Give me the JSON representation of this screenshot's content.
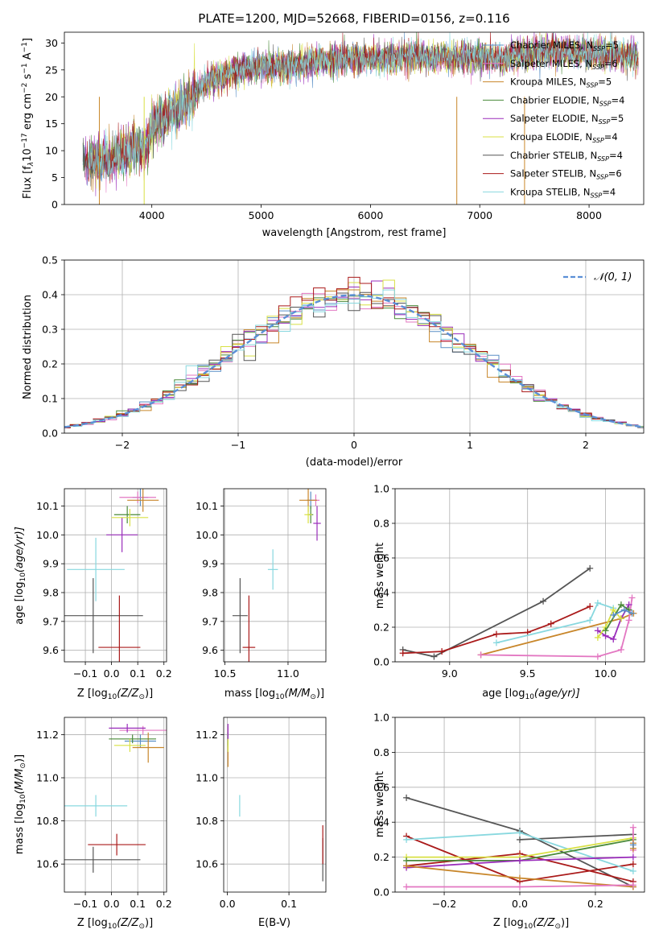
{
  "colors": {
    "chab_miles": "#5a8fc6",
    "salp_miles": "#e377c2",
    "kroupa_miles": "#c8862a",
    "chab_elodie": "#4a8a3a",
    "salp_elodie": "#9a2dbb",
    "kroupa_elodie": "#d8e043",
    "chab_stelib": "#555555",
    "salp_stelib": "#aa1a1a",
    "kroupa_stelib": "#88d8df"
  },
  "chart_data": [
    {
      "id": "spectrum",
      "type": "line",
      "title": "PLATE=1200, MJD=52668, FIBERID=0156, z=0.116",
      "xlabel": "wavelength [Angstrom, rest frame]",
      "ylabel_parts": [
        "Flux [f",
        "λ",
        "10",
        "−17",
        " erg cm",
        "−2",
        " s",
        "−1",
        " A",
        "−1",
        "]"
      ],
      "xlim": [
        3200,
        8500
      ],
      "ylim": [
        0,
        32
      ],
      "xticks": [
        "4000",
        "5000",
        "6000",
        "7000",
        "8000"
      ],
      "yticks": [
        "0",
        "5",
        "10",
        "15",
        "20",
        "25",
        "30"
      ],
      "legend_position": "upper-right",
      "continuum": {
        "x": [
          3400,
          3600,
          3800,
          3950,
          4000,
          4200,
          4300,
          4500,
          4800,
          5000,
          5200,
          5500,
          5800,
          6000,
          6300,
          6600,
          6800,
          7000,
          7200,
          7400,
          7600,
          7800,
          8000,
          8200,
          8450
        ],
        "y": [
          8,
          8.5,
          10,
          10.5,
          15,
          17,
          18.5,
          23,
          25,
          25.5,
          25.5,
          26.5,
          27,
          27,
          27.5,
          27.2,
          27.5,
          27.5,
          27,
          28,
          28.5,
          28.5,
          28,
          28,
          27.5
        ]
      },
      "legend": [
        {
          "label": "Chabrier MILES, N",
          "n": "5",
          "color_key": "chab_miles"
        },
        {
          "label": "Salpeter MILES, N",
          "n": "6",
          "color_key": "salp_miles"
        },
        {
          "label": "Kroupa MILES, N",
          "n": "5",
          "color_key": "kroupa_miles"
        },
        {
          "label": "Chabrier ELODIE, N",
          "n": "4",
          "color_key": "chab_elodie"
        },
        {
          "label": "Salpeter ELODIE, N",
          "n": "5",
          "color_key": "salp_elodie"
        },
        {
          "label": "Kroupa ELODIE, N",
          "n": "4",
          "color_key": "kroupa_elodie"
        },
        {
          "label": "Chabrier STELIB, N",
          "n": "4",
          "color_key": "chab_stelib"
        },
        {
          "label": "Salpeter STELIB, N",
          "n": "6",
          "color_key": "salp_stelib"
        },
        {
          "label": "Kroupa STELIB, N",
          "n": "4",
          "color_key": "kroupa_stelib"
        }
      ],
      "legend_sub": "SSP"
    },
    {
      "id": "residuals",
      "type": "line",
      "xlabel": "(data-model)/error",
      "ylabel": "Normed distribution",
      "xlim": [
        -2.5,
        2.5
      ],
      "ylim": [
        0,
        0.5
      ],
      "xticks": [
        "−2",
        "−1",
        "0",
        "1",
        "2"
      ],
      "yticks": [
        "0.0",
        "0.1",
        "0.2",
        "0.3",
        "0.4",
        "0.5"
      ],
      "grid": true,
      "legend": [
        {
          "label": "𝒩(0, 1)",
          "color": "#5a8fd6"
        }
      ],
      "legend_position": "upper-right",
      "bin_width": 0.1
    },
    {
      "id": "age_vs_Z",
      "type": "scatter",
      "xlabel_parts": [
        "Z [log",
        "10",
        "(Z/Z",
        "⊙",
        ")]"
      ],
      "ylabel_parts": [
        "age  [log",
        "10",
        "(age/yr)]"
      ],
      "xlim": [
        -0.18,
        0.21
      ],
      "ylim": [
        9.56,
        10.16
      ],
      "xticks": [
        "−0.1",
        "0.0",
        "0.1",
        "0.2"
      ],
      "xtick_values": [
        -0.1,
        0,
        0.1,
        0.2
      ],
      "yticks": [
        "9.6",
        "9.7",
        "9.8",
        "9.9",
        "10.0",
        "10.1"
      ],
      "ytick_values": [
        9.6,
        9.7,
        9.8,
        9.9,
        10.0,
        10.1
      ],
      "points": [
        {
          "x": 0.11,
          "y": 10.13,
          "xerr": 0.03,
          "yerr": 0.03,
          "color_key": "chab_miles"
        },
        {
          "x": 0.1,
          "y": 10.13,
          "xerr": 0.07,
          "yerr": 0.02,
          "color_key": "salp_miles"
        },
        {
          "x": 0.12,
          "y": 10.12,
          "xerr": 0.06,
          "yerr": 0.04,
          "color_key": "kroupa_miles"
        },
        {
          "x": 0.06,
          "y": 10.07,
          "xerr": 0.05,
          "yerr": 0.03,
          "color_key": "chab_elodie"
        },
        {
          "x": 0.04,
          "y": 10.0,
          "xerr": 0.06,
          "yerr": 0.06,
          "color_key": "salp_elodie"
        },
        {
          "x": 0.07,
          "y": 10.06,
          "xerr": 0.07,
          "yerr": 0.03,
          "color_key": "kroupa_elodie"
        },
        {
          "x": -0.07,
          "y": 9.72,
          "xerr": 0.19,
          "yerr": 0.13,
          "color_key": "chab_stelib"
        },
        {
          "x": 0.03,
          "y": 9.61,
          "xerr": 0.08,
          "yerr": 0.18,
          "color_key": "salp_stelib"
        },
        {
          "x": -0.06,
          "y": 9.88,
          "xerr": 0.11,
          "yerr": 0.11,
          "color_key": "kroupa_stelib"
        }
      ]
    },
    {
      "id": "age_vs_mass",
      "type": "scatter",
      "xlabel_parts": [
        "mass [log",
        "10",
        "(M/M",
        "⊙",
        ")]"
      ],
      "xlim": [
        10.49,
        11.3
      ],
      "ylim": [
        9.56,
        10.16
      ],
      "xticks": [
        "10.5",
        "11.0"
      ],
      "xtick_values": [
        10.5,
        11.0
      ],
      "yticks": [
        "9.6",
        "9.7",
        "9.8",
        "9.9",
        "10.0",
        "10.1"
      ],
      "ytick_values": [
        9.6,
        9.7,
        9.8,
        9.9,
        10.0,
        10.1
      ],
      "points": [
        {
          "x": 11.18,
          "y": 10.12,
          "xerr": 0.03,
          "yerr": 0.03,
          "color_key": "chab_miles"
        },
        {
          "x": 11.22,
          "y": 10.12,
          "xerr": 0.03,
          "yerr": 0.02,
          "color_key": "salp_miles"
        },
        {
          "x": 11.16,
          "y": 10.12,
          "xerr": 0.07,
          "yerr": 0.04,
          "color_key": "kroupa_miles"
        },
        {
          "x": 11.18,
          "y": 10.07,
          "xerr": 0.02,
          "yerr": 0.03,
          "color_key": "chab_elodie"
        },
        {
          "x": 11.23,
          "y": 10.04,
          "xerr": 0.03,
          "yerr": 0.06,
          "color_key": "salp_elodie"
        },
        {
          "x": 11.16,
          "y": 10.07,
          "xerr": 0.03,
          "yerr": 0.03,
          "color_key": "kroupa_elodie"
        },
        {
          "x": 10.62,
          "y": 9.72,
          "xerr": 0.06,
          "yerr": 0.13,
          "color_key": "chab_stelib"
        },
        {
          "x": 10.69,
          "y": 9.61,
          "xerr": 0.05,
          "yerr": 0.18,
          "color_key": "salp_stelib"
        },
        {
          "x": 10.88,
          "y": 9.88,
          "xerr": 0.04,
          "yerr": 0.07,
          "color_key": "kroupa_stelib"
        }
      ]
    },
    {
      "id": "mass_vs_Z",
      "type": "scatter",
      "xlabel_parts": [
        "Z [log",
        "10",
        "(Z/Z",
        "⊙",
        ")]"
      ],
      "ylabel_parts": [
        "mass [log",
        "10",
        "(M/M",
        "⊙",
        ")]"
      ],
      "xlim": [
        -0.18,
        0.21
      ],
      "ylim": [
        10.47,
        11.28
      ],
      "xticks": [
        "−0.1",
        "0.0",
        "0.1",
        "0.2"
      ],
      "xtick_values": [
        -0.1,
        0,
        0.1,
        0.2
      ],
      "yticks": [
        "10.6",
        "10.8",
        "11.0",
        "11.2"
      ],
      "ytick_values": [
        10.6,
        10.8,
        11.0,
        11.2
      ],
      "points": [
        {
          "x": 0.11,
          "y": 11.17,
          "xerr": 0.06,
          "yerr": 0.03,
          "color_key": "chab_miles"
        },
        {
          "x": 0.12,
          "y": 11.22,
          "xerr": 0.09,
          "yerr": 0.02,
          "color_key": "salp_miles"
        },
        {
          "x": 0.14,
          "y": 11.14,
          "xerr": 0.06,
          "yerr": 0.07,
          "color_key": "kroupa_miles"
        },
        {
          "x": 0.08,
          "y": 11.18,
          "xerr": 0.09,
          "yerr": 0.02,
          "color_key": "chab_elodie"
        },
        {
          "x": 0.06,
          "y": 11.23,
          "xerr": 0.07,
          "yerr": 0.02,
          "color_key": "salp_elodie"
        },
        {
          "x": 0.07,
          "y": 11.15,
          "xerr": 0.06,
          "yerr": 0.03,
          "color_key": "kroupa_elodie"
        },
        {
          "x": -0.07,
          "y": 10.62,
          "xerr": 0.18,
          "yerr": 0.06,
          "color_key": "chab_stelib"
        },
        {
          "x": 0.02,
          "y": 10.69,
          "xerr": 0.11,
          "yerr": 0.05,
          "color_key": "salp_stelib"
        },
        {
          "x": -0.06,
          "y": 10.87,
          "xerr": 0.12,
          "yerr": 0.05,
          "color_key": "kroupa_stelib"
        }
      ]
    },
    {
      "id": "mass_vs_ebv",
      "type": "scatter",
      "xlabel": "E(B-V)",
      "xlim": [
        -0.006,
        0.16
      ],
      "ylim": [
        10.47,
        11.28
      ],
      "xticks": [
        "0.0",
        "0.1"
      ],
      "xtick_values": [
        0,
        0.1
      ],
      "yticks": [
        "10.6",
        "10.8",
        "11.0",
        "11.2"
      ],
      "ytick_values": [
        10.6,
        10.8,
        11.0,
        11.2
      ],
      "points": [
        {
          "x": 0.001,
          "y": 11.17,
          "xerr": 0,
          "yerr": 0.03,
          "color_key": "chab_miles"
        },
        {
          "x": 0.001,
          "y": 11.22,
          "xerr": 0,
          "yerr": 0.02,
          "color_key": "salp_miles"
        },
        {
          "x": 0.001,
          "y": 11.12,
          "xerr": 0,
          "yerr": 0.07,
          "color_key": "kroupa_miles"
        },
        {
          "x": 0.001,
          "y": 11.18,
          "xerr": 0,
          "yerr": 0.03,
          "color_key": "chab_elodie"
        },
        {
          "x": 0.001,
          "y": 11.21,
          "xerr": 0,
          "yerr": 0.04,
          "color_key": "salp_elodie"
        },
        {
          "x": 0.001,
          "y": 11.15,
          "xerr": 0,
          "yerr": 0.03,
          "color_key": "kroupa_elodie"
        },
        {
          "x": 0.155,
          "y": 10.62,
          "xerr": 0,
          "yerr": 0.1,
          "color_key": "chab_stelib"
        },
        {
          "x": 0.155,
          "y": 10.69,
          "xerr": 0,
          "yerr": 0.09,
          "color_key": "salp_stelib"
        },
        {
          "x": 0.02,
          "y": 10.87,
          "xerr": 0,
          "yerr": 0.05,
          "color_key": "kroupa_stelib"
        }
      ]
    },
    {
      "id": "massweight_vs_age",
      "type": "line",
      "xlabel_parts": [
        "age  [log",
        "10",
        "(age/yr)]"
      ],
      "ylabel": "mass weight",
      "xlim": [
        8.65,
        10.25
      ],
      "ylim": [
        0,
        1
      ],
      "xticks": [
        "9.0",
        "9.5",
        "10.0"
      ],
      "xtick_values": [
        9.0,
        9.5,
        10.0
      ],
      "yticks": [
        "0.0",
        "0.2",
        "0.4",
        "0.6",
        "0.8",
        "1.0"
      ],
      "ytick_values": [
        0,
        0.2,
        0.4,
        0.6,
        0.8,
        1.0
      ],
      "grid": true,
      "series": [
        {
          "color_key": "chab_stelib",
          "x": [
            8.7,
            8.9,
            9.6,
            9.9
          ],
          "y": [
            0.07,
            0.03,
            0.35,
            0.54
          ]
        },
        {
          "color_key": "salp_stelib",
          "x": [
            8.7,
            8.95,
            9.3,
            9.5,
            9.65,
            9.9
          ],
          "y": [
            0.05,
            0.06,
            0.16,
            0.17,
            0.22,
            0.32
          ]
        },
        {
          "color_key": "kroupa_stelib",
          "x": [
            9.3,
            9.9,
            9.95,
            10.05
          ],
          "y": [
            0.11,
            0.24,
            0.34,
            0.31
          ]
        },
        {
          "color_key": "kroupa_miles",
          "x": [
            9.2,
            10.1,
            10.18
          ],
          "y": [
            0.04,
            0.25,
            0.28
          ]
        },
        {
          "color_key": "salp_miles",
          "x": [
            9.2,
            9.95,
            10.1,
            10.15,
            10.17
          ],
          "y": [
            0.04,
            0.03,
            0.07,
            0.24,
            0.37
          ]
        },
        {
          "color_key": "salp_elodie",
          "x": [
            9.95,
            10.0,
            10.05,
            10.1,
            10.15
          ],
          "y": [
            0.18,
            0.15,
            0.13,
            0.25,
            0.33
          ]
        },
        {
          "color_key": "kroupa_elodie",
          "x": [
            9.95,
            10.0,
            10.05,
            10.1
          ],
          "y": [
            0.14,
            0.2,
            0.3,
            0.25
          ]
        },
        {
          "color_key": "chab_elodie",
          "x": [
            10.0,
            10.1,
            10.15
          ],
          "y": [
            0.18,
            0.33,
            0.3
          ]
        },
        {
          "color_key": "chab_miles",
          "x": [
            10.05,
            10.12,
            10.17
          ],
          "y": [
            0.27,
            0.3,
            0.28
          ]
        }
      ]
    },
    {
      "id": "massweight_vs_Z",
      "type": "line",
      "xlabel_parts": [
        "Z [log",
        "10",
        "(Z/Z",
        "⊙",
        ")]"
      ],
      "ylabel": "mass weight",
      "xlim": [
        -0.33,
        0.33
      ],
      "ylim": [
        0,
        1
      ],
      "xticks": [
        "−0.2",
        "0.0",
        "0.2"
      ],
      "xtick_values": [
        -0.2,
        0,
        0.2
      ],
      "yticks": [
        "0.0",
        "0.2",
        "0.4",
        "0.6",
        "0.8",
        "1.0"
      ],
      "ytick_values": [
        0,
        0.2,
        0.4,
        0.6,
        0.8,
        1.0
      ],
      "grid": true,
      "series": [
        {
          "color_key": "chab_stelib",
          "x": [
            -0.3,
            0.0,
            0.3
          ],
          "y": [
            0.54,
            0.35,
            0.03
          ]
        },
        {
          "color_key": "chab_stelib",
          "x": [
            0.0,
            0.3
          ],
          "y": [
            0.3,
            0.33
          ]
        },
        {
          "color_key": "salp_stelib",
          "x": [
            -0.3,
            0.0,
            0.3
          ],
          "y": [
            0.32,
            0.06,
            0.16
          ]
        },
        {
          "color_key": "salp_stelib",
          "x": [
            -0.3,
            0.0,
            0.3
          ],
          "y": [
            0.15,
            0.22,
            0.06
          ]
        },
        {
          "color_key": "kroupa_stelib",
          "x": [
            -0.3,
            0.0,
            0.3
          ],
          "y": [
            0.3,
            0.34,
            0.12
          ]
        },
        {
          "color_key": "kroupa_elodie",
          "x": [
            -0.3,
            0.0,
            0.3
          ],
          "y": [
            0.2,
            0.2,
            0.31
          ]
        },
        {
          "color_key": "chab_elodie",
          "x": [
            -0.3,
            0.0,
            0.3
          ],
          "y": [
            0.18,
            0.18,
            0.3
          ]
        },
        {
          "color_key": "salp_elodie",
          "x": [
            -0.3,
            0.0,
            0.3
          ],
          "y": [
            0.14,
            0.18,
            0.2
          ]
        },
        {
          "color_key": "kroupa_miles",
          "x": [
            -0.3,
            0.0,
            0.3
          ],
          "y": [
            0.15,
            0.08,
            0.03
          ]
        },
        {
          "color_key": "salp_miles",
          "x": [
            -0.3,
            0.0,
            0.3
          ],
          "y": [
            0.03,
            0.03,
            0.04
          ]
        },
        {
          "color_key": "salp_miles",
          "x": [
            0.3,
            0.3
          ],
          "y": [
            0.37,
            0.24
          ]
        },
        {
          "color_key": "kroupa_miles",
          "x": [
            0.3,
            0.3
          ],
          "y": [
            0.28,
            0.25
          ]
        },
        {
          "color_key": "chab_miles",
          "x": [
            0.3
          ],
          "y": [
            0.27
          ]
        }
      ]
    }
  ]
}
